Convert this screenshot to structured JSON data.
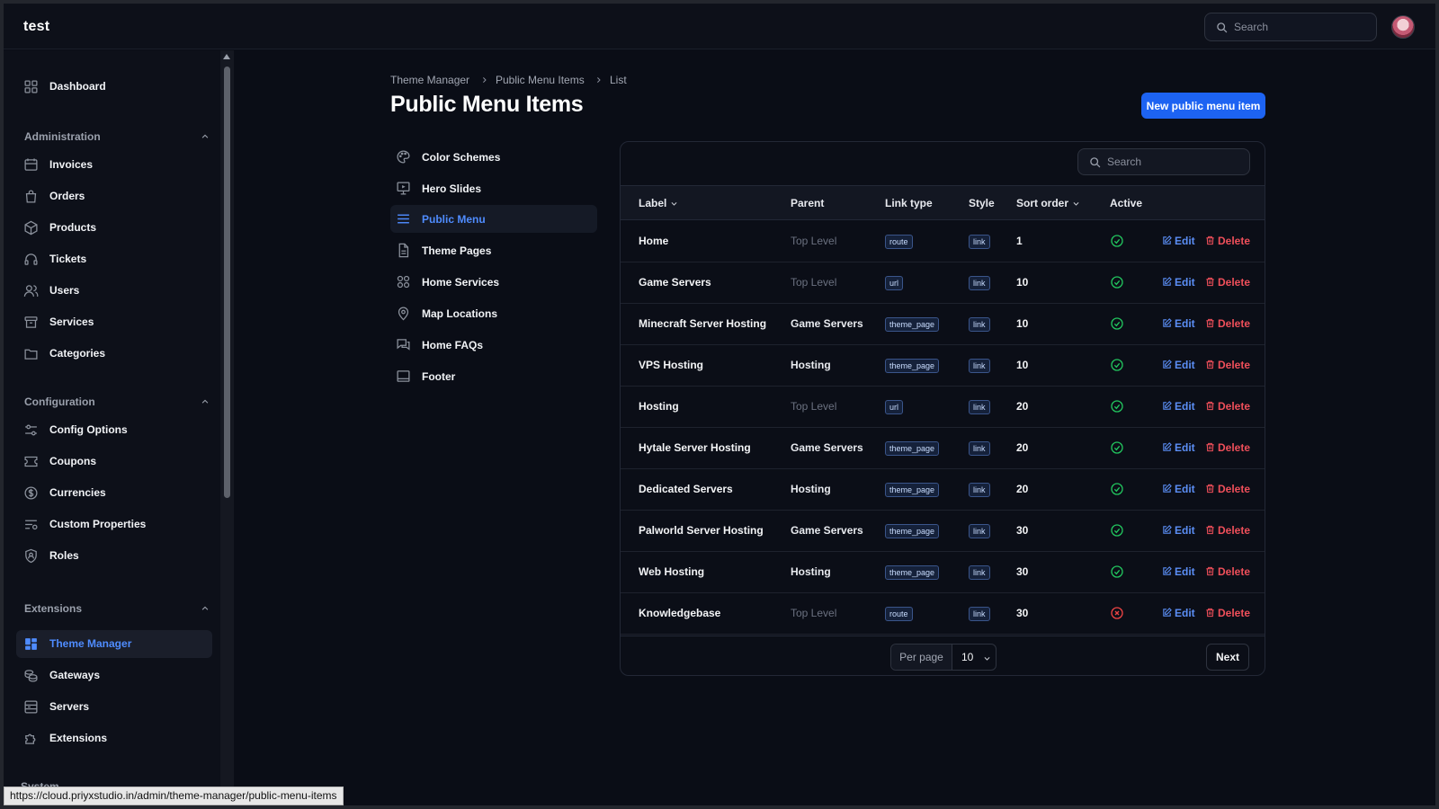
{
  "app": {
    "brand": "test"
  },
  "topbar": {
    "search_placeholder": "Search"
  },
  "sidebar": {
    "dashboard": "Dashboard",
    "groups": [
      {
        "title": "Administration",
        "items": [
          "Invoices",
          "Orders",
          "Products",
          "Tickets",
          "Users",
          "Services",
          "Categories"
        ]
      },
      {
        "title": "Configuration",
        "items": [
          "Config Options",
          "Coupons",
          "Currencies",
          "Custom Properties",
          "Roles"
        ]
      },
      {
        "title": "Extensions",
        "items": [
          "Theme Manager",
          "Gateways",
          "Servers",
          "Extensions"
        ]
      }
    ],
    "next_group_peek": "System",
    "active": "Theme Manager"
  },
  "breadcrumb": [
    "Theme Manager",
    "Public Menu Items",
    "List"
  ],
  "page": {
    "title": "Public Menu Items",
    "new_button": "New public menu item"
  },
  "subnav": {
    "items": [
      "Color Schemes",
      "Hero Slides",
      "Public Menu",
      "Theme Pages",
      "Home Services",
      "Map Locations",
      "Home FAQs",
      "Footer"
    ],
    "active": "Public Menu"
  },
  "table": {
    "search_placeholder": "Search",
    "columns": [
      "Label",
      "Parent",
      "Link type",
      "Style",
      "Sort order",
      "Active"
    ],
    "rows": [
      {
        "label": "Home",
        "parent": "Top Level",
        "link_type": "route",
        "style": "link",
        "sort": "1",
        "active": true
      },
      {
        "label": "Game Servers",
        "parent": "Top Level",
        "link_type": "url",
        "style": "link",
        "sort": "10",
        "active": true
      },
      {
        "label": "Minecraft Server Hosting",
        "parent": "Game Servers",
        "link_type": "theme_page",
        "style": "link",
        "sort": "10",
        "active": true
      },
      {
        "label": "VPS Hosting",
        "parent": "Hosting",
        "link_type": "theme_page",
        "style": "link",
        "sort": "10",
        "active": true
      },
      {
        "label": "Hosting",
        "parent": "Top Level",
        "link_type": "url",
        "style": "link",
        "sort": "20",
        "active": true
      },
      {
        "label": "Hytale Server Hosting",
        "parent": "Game Servers",
        "link_type": "theme_page",
        "style": "link",
        "sort": "20",
        "active": true
      },
      {
        "label": "Dedicated Servers",
        "parent": "Hosting",
        "link_type": "theme_page",
        "style": "link",
        "sort": "20",
        "active": true
      },
      {
        "label": "Palworld Server Hosting",
        "parent": "Game Servers",
        "link_type": "theme_page",
        "style": "link",
        "sort": "30",
        "active": true
      },
      {
        "label": "Web Hosting",
        "parent": "Hosting",
        "link_type": "theme_page",
        "style": "link",
        "sort": "30",
        "active": true
      },
      {
        "label": "Knowledgebase",
        "parent": "Top Level",
        "link_type": "route",
        "style": "link",
        "sort": "30",
        "active": false
      }
    ],
    "edit_label": "Edit",
    "delete_label": "Delete",
    "per_page_label": "Per page",
    "per_page_value": "10",
    "next_label": "Next"
  },
  "statusbar": {
    "url": "https://cloud.priyxstudio.in/admin/theme-manager/public-menu-items"
  },
  "colors": {
    "accent": "#1d63f2",
    "active_green": "#22c55e",
    "inactive_red": "#ef4444",
    "delete_red": "#ef4f5a"
  }
}
